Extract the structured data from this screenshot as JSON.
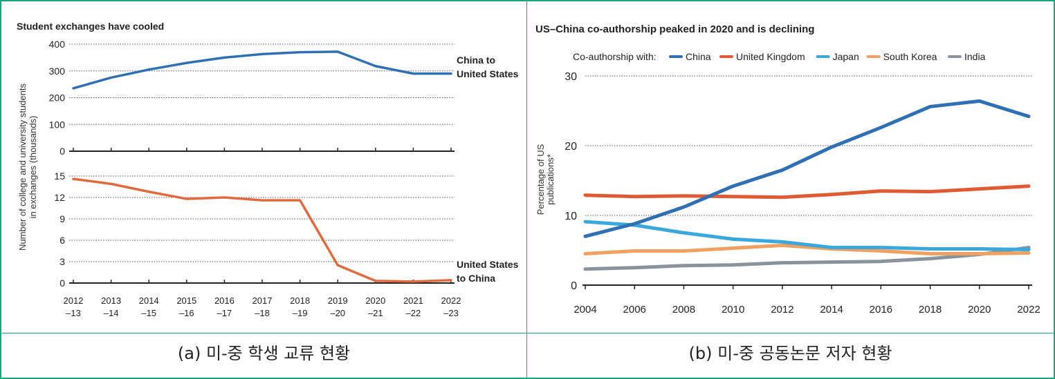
{
  "colors": {
    "border": "#1aa57e",
    "china": "#2f6fb3",
    "uk": "#e05a32",
    "japan": "#3aa8dc",
    "south_korea": "#f0a060",
    "india": "#8a929b",
    "us_to_china": "#e06a3d"
  },
  "captions": {
    "left": "(a) 미-중 학생 교류 현황",
    "right": "(b) 미-중 공동논문 저자 현황"
  },
  "chart_data": [
    {
      "type": "line",
      "title": "Student exchanges have cooled",
      "ylabel_lines": [
        "Number of college and university students",
        "in exchanges (thousands)"
      ],
      "x_tick_labels": [
        [
          "2012",
          "–13"
        ],
        [
          "2013",
          "–14"
        ],
        [
          "2014",
          "–15"
        ],
        [
          "2015",
          "–16"
        ],
        [
          "2016",
          "–17"
        ],
        [
          "2017",
          "–18"
        ],
        [
          "2018",
          "–19"
        ],
        [
          "2019",
          "–20"
        ],
        [
          "2020",
          "–21"
        ],
        [
          "2021",
          "–22"
        ],
        [
          "2022",
          "–23"
        ]
      ],
      "panels": [
        {
          "name": "top",
          "yticks": [
            "400",
            "300",
            "200",
            "100",
            "0"
          ],
          "ylim": [
            0,
            400
          ],
          "grid": true,
          "series": [
            {
              "name_lines": [
                "China to",
                "United States"
              ],
              "color_key": "china",
              "values": [
                235,
                275,
                305,
                330,
                350,
                363,
                370,
                372,
                318,
                290,
                290
              ]
            }
          ]
        },
        {
          "name": "bottom",
          "yticks": [
            "15",
            "12",
            "9",
            "6",
            "3",
            "0"
          ],
          "ylim": [
            0,
            15
          ],
          "grid": true,
          "series": [
            {
              "name_lines": [
                "United States",
                "to China"
              ],
              "color_key": "us_to_china",
              "values": [
                14.6,
                13.9,
                12.8,
                11.8,
                12.0,
                11.6,
                11.6,
                2.5,
                0.3,
                0.2,
                0.4
              ]
            }
          ]
        }
      ]
    },
    {
      "type": "line",
      "title": "US–China co-authorship peaked in 2020 and is declining",
      "legend_title": "Co-authorship with:",
      "legend_position": "top",
      "ylabel_lines": [
        "Percentage of US",
        "publications*"
      ],
      "x": [
        2004,
        2006,
        2008,
        2010,
        2012,
        2014,
        2016,
        2018,
        2020,
        2022
      ],
      "x_tick_labels": [
        "2004",
        "2006",
        "2008",
        "2010",
        "2012",
        "2014",
        "2016",
        "2018",
        "2020",
        "2022"
      ],
      "yticks": [
        "30",
        "20",
        "10",
        "0"
      ],
      "ylim": [
        0,
        30
      ],
      "grid": true,
      "series": [
        {
          "name": "China",
          "color_key": "china",
          "values": [
            7.0,
            8.8,
            11.2,
            14.2,
            16.5,
            19.8,
            22.6,
            25.6,
            26.4,
            24.2
          ]
        },
        {
          "name": "United Kingdom",
          "color_key": "uk",
          "values": [
            12.9,
            12.7,
            12.8,
            12.7,
            12.6,
            13.0,
            13.5,
            13.4,
            13.8,
            14.2
          ]
        },
        {
          "name": "Japan",
          "color_key": "japan",
          "values": [
            9.1,
            8.6,
            7.5,
            6.6,
            6.2,
            5.4,
            5.4,
            5.2,
            5.2,
            5.1
          ]
        },
        {
          "name": "South Korea",
          "color_key": "south_korea",
          "values": [
            4.5,
            4.9,
            4.9,
            5.3,
            5.7,
            5.2,
            4.9,
            4.5,
            4.5,
            4.6
          ]
        },
        {
          "name": "India",
          "color_key": "india",
          "values": [
            2.3,
            2.5,
            2.8,
            2.9,
            3.2,
            3.3,
            3.4,
            3.8,
            4.4,
            5.4
          ]
        }
      ]
    }
  ]
}
